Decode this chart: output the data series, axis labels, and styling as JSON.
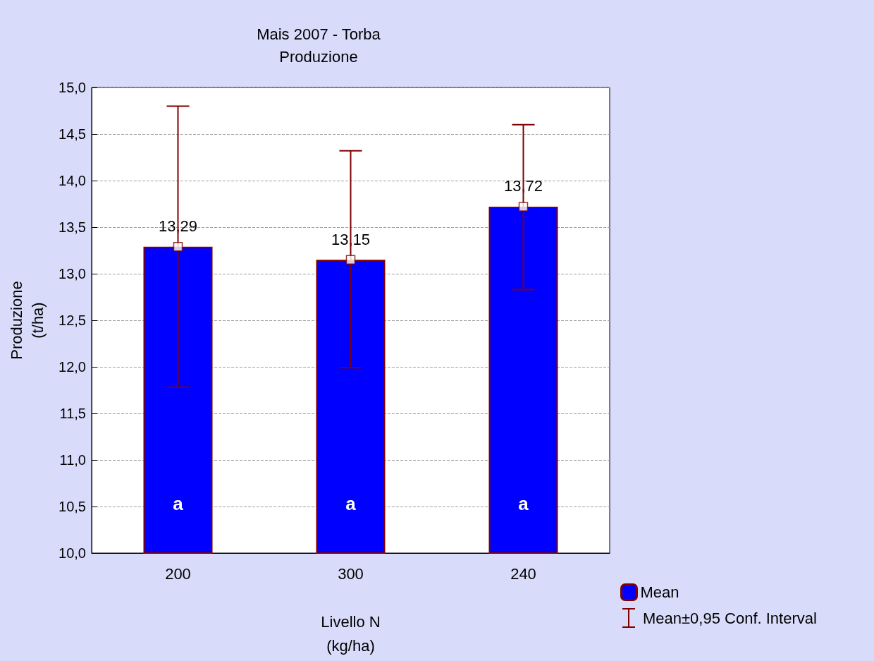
{
  "chart_data": {
    "type": "bar",
    "title": "Mais 2007 - Torba",
    "subtitle": "Produzione",
    "xlabel": "Livello N\n(kg/ha)",
    "ylabel": "Produzione\n(t/ha)",
    "categories": [
      "200",
      "300",
      "240"
    ],
    "series": [
      {
        "name": "Mean",
        "color": "#0000ff",
        "values": [
          13.29,
          13.15,
          13.72
        ],
        "errors": [
          [
            11.78,
            14.8
          ],
          [
            11.99,
            14.32
          ],
          [
            12.83,
            14.6
          ]
        ],
        "value_labels": [
          "13,29",
          "13,15",
          "13,72"
        ]
      },
      {
        "type": "scatter",
        "color": "#ffffff",
        "values": [
          13.29,
          13.15,
          13.72
        ]
      }
    ],
    "ylim": [
      10,
      15
    ],
    "yticks": [
      {
        "value": 10,
        "label": "10,0"
      },
      {
        "value": 10.5,
        "label": "10,5"
      },
      {
        "value": 11,
        "label": "11,0"
      },
      {
        "value": 11.5,
        "label": "11,5"
      },
      {
        "value": 12,
        "label": "12,0"
      },
      {
        "value": 12.5,
        "label": "12,5"
      },
      {
        "value": 13,
        "label": "13,0"
      },
      {
        "value": 13.5,
        "label": "13,5"
      },
      {
        "value": 14,
        "label": "14,0"
      },
      {
        "value": 14.5,
        "label": "14,5"
      },
      {
        "value": 15,
        "label": "15,0"
      }
    ],
    "grid": "y",
    "legend": "bottom right",
    "marker": "square",
    "annotations": [
      "a",
      "a",
      "a",
      "Mean±0,95 Conf. Interval"
    ]
  }
}
